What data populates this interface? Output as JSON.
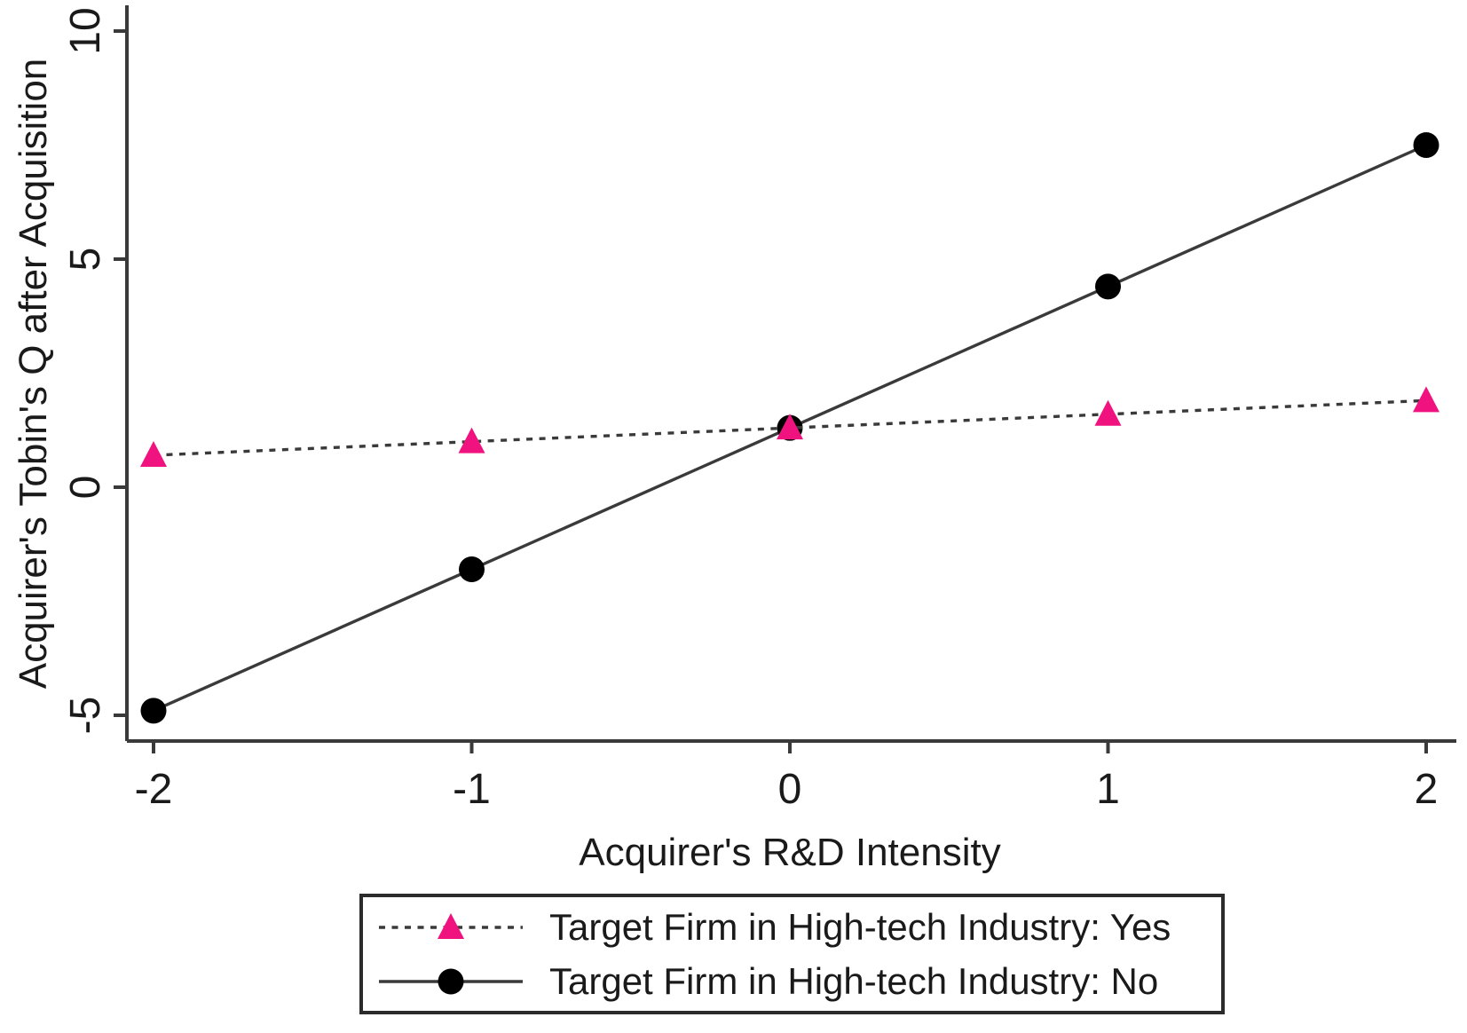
{
  "axes": {
    "x_label": "Acquirer's R&D Intensity",
    "y_label": "Acquirer's Tobin's Q after Acquisition"
  },
  "legend": {
    "entries": [
      {
        "label": "Target Firm in High-tech Industry: Yes",
        "marker": "triangle",
        "line": "dashed"
      },
      {
        "label": "Target Firm in High-tech Industry: No",
        "marker": "circle",
        "line": "solid"
      }
    ]
  },
  "chart_data": {
    "type": "line",
    "title": "",
    "xlabel": "Acquirer's R&D Intensity",
    "ylabel": "Acquirer's Tobin's Q after Acquisition",
    "x": [
      -2,
      -1,
      0,
      1,
      2
    ],
    "series": [
      {
        "name": "Target Firm in High-tech Industry: Yes",
        "values": [
          0.7,
          1.0,
          1.3,
          1.6,
          1.9
        ],
        "marker": "triangle",
        "marker_color": "#F0137F",
        "line_style": "dashed",
        "line_color": "#3a3a3a"
      },
      {
        "name": "Target Firm in High-tech Industry: No",
        "values": [
          -4.9,
          -1.8,
          1.3,
          4.4,
          7.5
        ],
        "marker": "circle",
        "marker_color": "#000000",
        "line_style": "solid",
        "line_color": "#3a3a3a"
      }
    ],
    "x_ticks": [
      "-2",
      "-1",
      "0",
      "1",
      "2"
    ],
    "x_tick_values": [
      -2,
      -1,
      0,
      1,
      2
    ],
    "y_ticks": [
      "10",
      "5",
      "0",
      "-5"
    ],
    "y_tick_values": [
      10,
      5,
      0,
      -5
    ],
    "xlim": [
      -2.1,
      2.1
    ],
    "ylim": [
      -5.6,
      10.6
    ],
    "grid": false,
    "legend_position": "bottom"
  }
}
